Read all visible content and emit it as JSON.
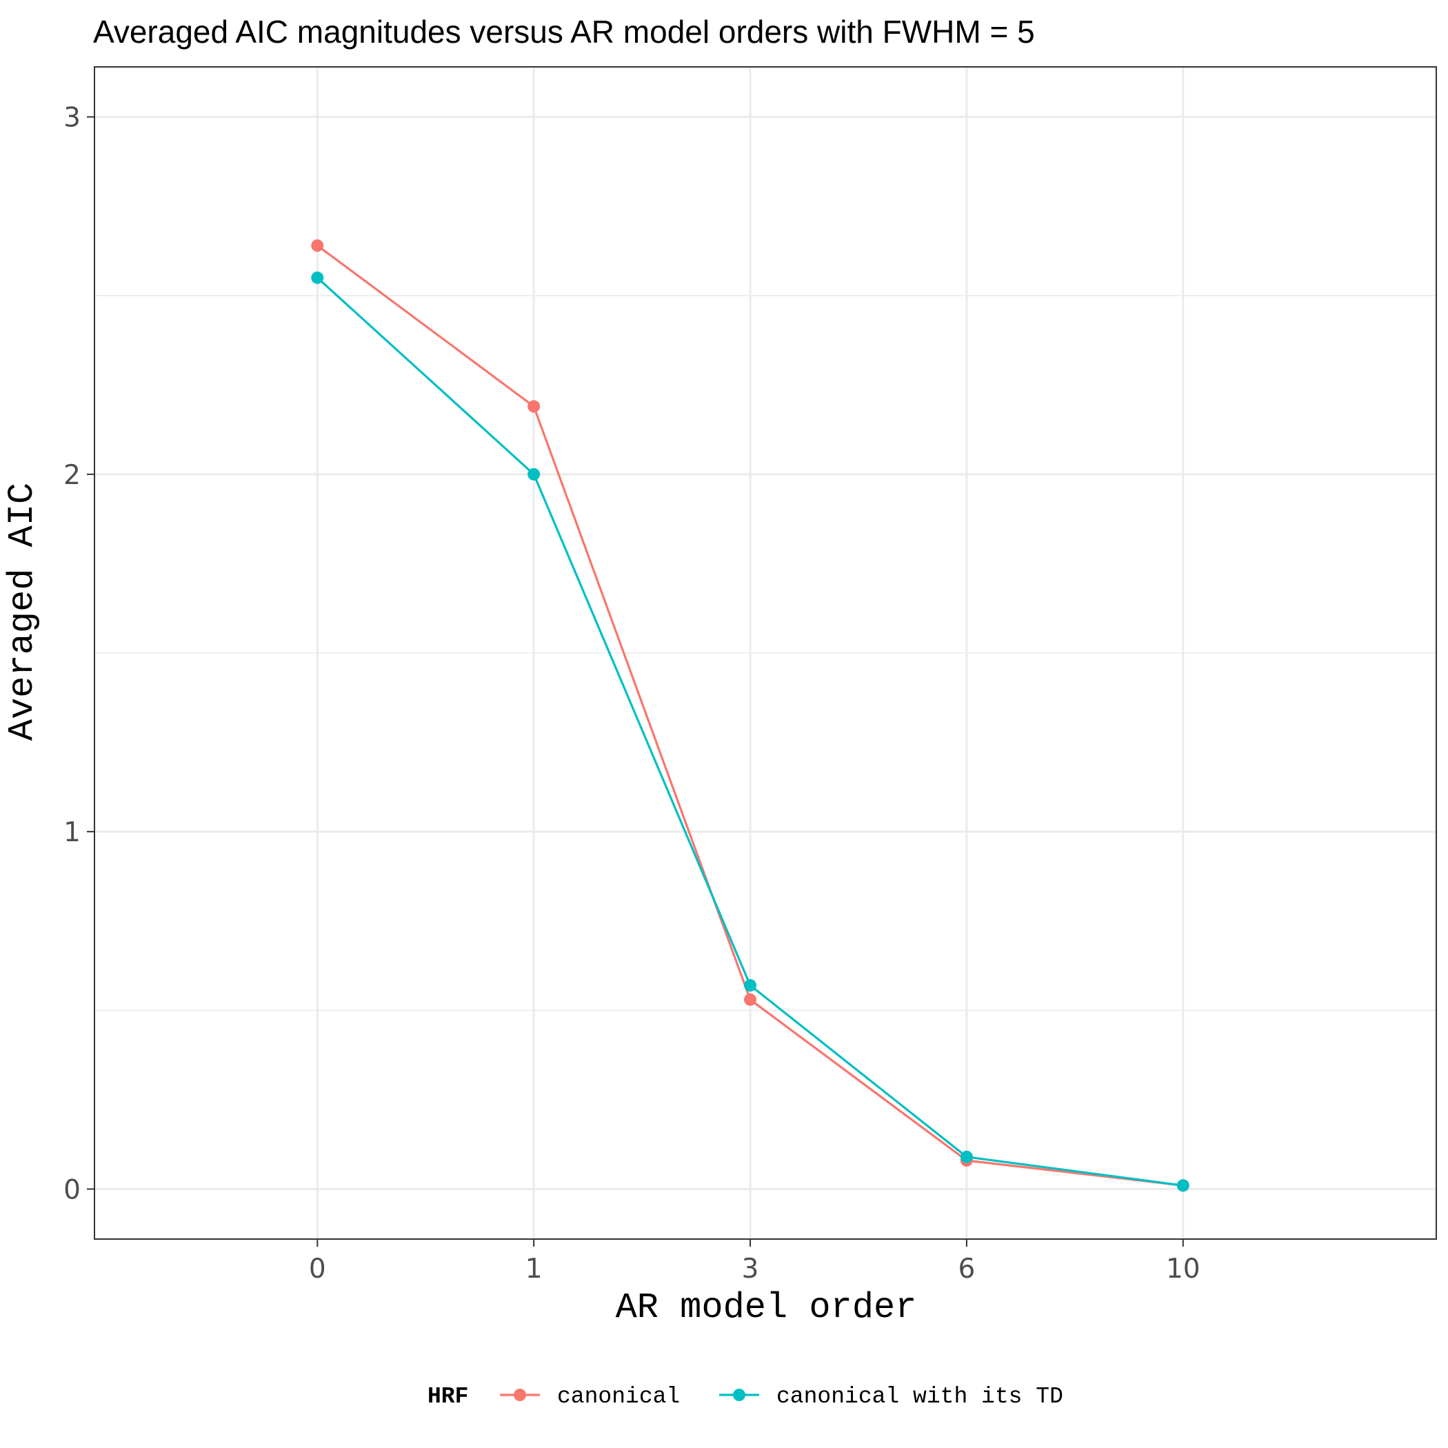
{
  "chart_data": {
    "type": "line",
    "title": "Averaged AIC magnitudes versus AR model orders with FWHM = 5",
    "xlabel": "AR model order",
    "ylabel": "Averaged AIC",
    "categories": [
      "0",
      "1",
      "3",
      "6",
      "10"
    ],
    "ylim": [
      -0.14,
      3.14
    ],
    "yticks": [
      "0",
      "1",
      "2",
      "3"
    ],
    "grid": true,
    "legend": {
      "title": "HRF",
      "position": "bottom"
    },
    "series": [
      {
        "name": "canonical",
        "color": "#F8766D",
        "values": [
          2.64,
          2.19,
          0.53,
          0.08,
          0.01
        ]
      },
      {
        "name": "canonical with its TD",
        "color": "#00BFC4",
        "values": [
          2.55,
          2.0,
          0.57,
          0.09,
          0.01
        ]
      }
    ]
  }
}
